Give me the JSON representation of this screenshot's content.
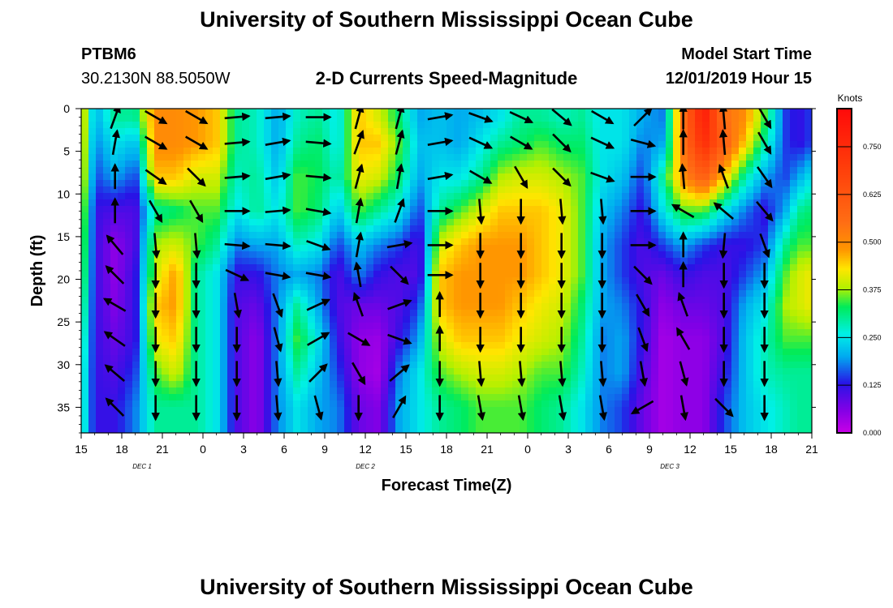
{
  "page": {
    "title_top": "University of Southern Mississippi Ocean Cube",
    "title_bottom": "University of Southern Mississippi Ocean Cube",
    "station": "PTBM6",
    "location": "30.2130N 88.5050W",
    "subtitle": "2-D Currents Speed-Magnitude",
    "model_start_label": "Model Start Time",
    "model_start_value": "12/01/2019 Hour 15"
  },
  "chart_data": {
    "type": "heatmap",
    "title": "2-D Currents Speed-Magnitude",
    "xlabel": "Forecast Time(Z)",
    "ylabel": "Depth (ft)",
    "x_tick_labels": [
      "15",
      "18",
      "21",
      "0",
      "3",
      "6",
      "9",
      "12",
      "15",
      "18",
      "21",
      "0",
      "3",
      "6",
      "9",
      "12",
      "15",
      "18",
      "21"
    ],
    "x_hours": [
      0,
      3,
      6,
      9,
      12,
      15,
      18,
      21,
      24,
      27,
      30,
      33,
      36,
      39,
      42,
      45,
      48,
      51,
      54
    ],
    "date_labels": [
      {
        "text": "DEC 1",
        "hour": 4.5
      },
      {
        "text": "DEC 2",
        "hour": 21
      },
      {
        "text": "DEC 3",
        "hour": 43.5
      }
    ],
    "xlim": [
      0,
      54
    ],
    "y_tick_labels": [
      "0",
      "5",
      "10",
      "15",
      "20",
      "25",
      "30",
      "35"
    ],
    "y_values": [
      0,
      5,
      10,
      15,
      20,
      25,
      30,
      35
    ],
    "ylim": [
      0,
      38
    ],
    "y_inverted": true,
    "colorbar": {
      "label": "Knots",
      "tick_labels": [
        "0.000",
        "0.125",
        "0.250",
        "0.375",
        "0.500",
        "0.625",
        "0.750"
      ],
      "tick_values": [
        0,
        0.125,
        0.25,
        0.375,
        0.5,
        0.625,
        0.75
      ],
      "range": [
        0,
        0.85
      ]
    },
    "arrow_depths": [
      1,
      4,
      8,
      12,
      16,
      19.5,
      23,
      27,
      31,
      35
    ],
    "speed_columns": [
      {
        "hour": 0,
        "speed": [
          0.45,
          0.45,
          0.45,
          0.42,
          0.4,
          0.38,
          0.35,
          0.32,
          0.3,
          0.3
        ]
      },
      {
        "hour": 1,
        "speed": [
          0.2,
          0.18,
          0.15,
          0.12,
          0.12,
          0.12,
          0.12,
          0.12,
          0.12,
          0.12
        ]
      },
      {
        "hour": 2.5,
        "speed": [
          0.3,
          0.25,
          0.2,
          0.1,
          0.05,
          0.05,
          0.06,
          0.08,
          0.1,
          0.12
        ]
      },
      {
        "hour": 4,
        "speed": [
          0.3,
          0.22,
          0.15,
          0.1,
          0.1,
          0.12,
          0.12,
          0.12,
          0.15,
          0.18
        ]
      },
      {
        "hour": 5.5,
        "speed": [
          0.5,
          0.5,
          0.45,
          0.3,
          0.38,
          0.4,
          0.45,
          0.42,
          0.35,
          0.3
        ]
      },
      {
        "hour": 7,
        "speed": [
          0.5,
          0.5,
          0.45,
          0.32,
          0.4,
          0.48,
          0.48,
          0.45,
          0.4,
          0.3
        ]
      },
      {
        "hour": 8.5,
        "speed": [
          0.48,
          0.48,
          0.4,
          0.35,
          0.35,
          0.3,
          0.3,
          0.3,
          0.3,
          0.3
        ]
      },
      {
        "hour": 10,
        "speed": [
          0.45,
          0.45,
          0.4,
          0.35,
          0.3,
          0.25,
          0.25,
          0.25,
          0.25,
          0.25
        ]
      },
      {
        "hour": 11.5,
        "speed": [
          0.3,
          0.3,
          0.28,
          0.25,
          0.18,
          0.12,
          0.1,
          0.1,
          0.1,
          0.1
        ]
      },
      {
        "hour": 13,
        "speed": [
          0.28,
          0.28,
          0.3,
          0.3,
          0.2,
          0.12,
          0.08,
          0.05,
          0.05,
          0.05
        ]
      },
      {
        "hour": 14.5,
        "speed": [
          0.2,
          0.2,
          0.22,
          0.25,
          0.2,
          0.18,
          0.18,
          0.18,
          0.18,
          0.18
        ]
      },
      {
        "hour": 16,
        "speed": [
          0.28,
          0.3,
          0.35,
          0.35,
          0.28,
          0.2,
          0.3,
          0.35,
          0.3,
          0.25
        ]
      },
      {
        "hour": 17.5,
        "speed": [
          0.3,
          0.32,
          0.33,
          0.32,
          0.25,
          0.18,
          0.2,
          0.25,
          0.22,
          0.2
        ]
      },
      {
        "hour": 19,
        "speed": [
          0.25,
          0.25,
          0.28,
          0.22,
          0.15,
          0.1,
          0.1,
          0.12,
          0.15,
          0.18
        ]
      },
      {
        "hour": 20.5,
        "speed": [
          0.45,
          0.45,
          0.42,
          0.35,
          0.22,
          0.18,
          0.08,
          0.05,
          0.05,
          0.08
        ]
      },
      {
        "hour": 22,
        "speed": [
          0.4,
          0.45,
          0.4,
          0.3,
          0.18,
          0.12,
          0.08,
          0.04,
          0.03,
          0.06
        ]
      },
      {
        "hour": 23.5,
        "speed": [
          0.32,
          0.35,
          0.32,
          0.25,
          0.15,
          0.1,
          0.1,
          0.12,
          0.18,
          0.2
        ]
      },
      {
        "hour": 25,
        "speed": [
          0.2,
          0.22,
          0.2,
          0.15,
          0.1,
          0.1,
          0.15,
          0.2,
          0.25,
          0.25
        ]
      },
      {
        "hour": 26.5,
        "speed": [
          0.22,
          0.22,
          0.25,
          0.3,
          0.4,
          0.45,
          0.45,
          0.4,
          0.35,
          0.3
        ]
      },
      {
        "hour": 28,
        "speed": [
          0.2,
          0.2,
          0.25,
          0.35,
          0.45,
          0.48,
          0.48,
          0.45,
          0.38,
          0.32
        ]
      },
      {
        "hour": 29.5,
        "speed": [
          0.22,
          0.25,
          0.3,
          0.4,
          0.48,
          0.48,
          0.48,
          0.45,
          0.4,
          0.35
        ]
      },
      {
        "hour": 31,
        "speed": [
          0.25,
          0.3,
          0.38,
          0.45,
          0.48,
          0.48,
          0.48,
          0.45,
          0.4,
          0.35
        ]
      },
      {
        "hour": 32.5,
        "speed": [
          0.3,
          0.32,
          0.4,
          0.45,
          0.48,
          0.48,
          0.45,
          0.42,
          0.38,
          0.35
        ]
      },
      {
        "hour": 34,
        "speed": [
          0.3,
          0.35,
          0.4,
          0.45,
          0.45,
          0.45,
          0.42,
          0.4,
          0.35,
          0.32
        ]
      },
      {
        "hour": 35.5,
        "speed": [
          0.28,
          0.32,
          0.38,
          0.42,
          0.42,
          0.42,
          0.4,
          0.38,
          0.35,
          0.3
        ]
      },
      {
        "hour": 37,
        "speed": [
          0.3,
          0.32,
          0.35,
          0.35,
          0.35,
          0.35,
          0.32,
          0.3,
          0.28,
          0.25
        ]
      },
      {
        "hour": 38.5,
        "speed": [
          0.25,
          0.25,
          0.25,
          0.22,
          0.2,
          0.2,
          0.2,
          0.18,
          0.18,
          0.18
        ]
      },
      {
        "hour": 40,
        "speed": [
          0.25,
          0.25,
          0.22,
          0.18,
          0.15,
          0.15,
          0.18,
          0.2,
          0.2,
          0.15
        ]
      },
      {
        "hour": 41.5,
        "speed": [
          0.2,
          0.18,
          0.15,
          0.12,
          0.1,
          0.1,
          0.12,
          0.12,
          0.1,
          0.08
        ]
      },
      {
        "hour": 43,
        "speed": [
          0.18,
          0.2,
          0.3,
          0.25,
          0.15,
          0.08,
          0.05,
          0.03,
          0.03,
          0.03
        ]
      },
      {
        "hour": 44.5,
        "speed": [
          0.55,
          0.55,
          0.5,
          0.35,
          0.2,
          0.12,
          0.08,
          0.05,
          0.05,
          0.05
        ]
      },
      {
        "hour": 46,
        "speed": [
          0.8,
          0.75,
          0.6,
          0.35,
          0.15,
          0.1,
          0.08,
          0.05,
          0.05,
          0.05
        ]
      },
      {
        "hour": 47.5,
        "speed": [
          0.55,
          0.6,
          0.45,
          0.25,
          0.12,
          0.1,
          0.1,
          0.1,
          0.12,
          0.15
        ]
      },
      {
        "hour": 49,
        "speed": [
          0.5,
          0.45,
          0.3,
          0.18,
          0.12,
          0.15,
          0.2,
          0.22,
          0.22,
          0.22
        ]
      },
      {
        "hour": 50.5,
        "speed": [
          0.35,
          0.3,
          0.2,
          0.12,
          0.15,
          0.2,
          0.25,
          0.28,
          0.28,
          0.25
        ]
      },
      {
        "hour": 52,
        "speed": [
          0.15,
          0.15,
          0.15,
          0.2,
          0.3,
          0.35,
          0.38,
          0.35,
          0.3,
          0.28
        ]
      },
      {
        "hour": 53,
        "speed": [
          0.12,
          0.12,
          0.2,
          0.3,
          0.35,
          0.4,
          0.4,
          0.35,
          0.3,
          0.3
        ]
      },
      {
        "hour": 54,
        "speed": [
          0.15,
          0.15,
          0.25,
          0.32,
          0.35,
          0.42,
          0.42,
          0.35,
          0.3,
          0.3
        ]
      }
    ],
    "arrow_hours": [
      2.5,
      5.5,
      8.5,
      11.5,
      14.5,
      17.5,
      20.5,
      23.5,
      26.5,
      29.5,
      32.5,
      35.5,
      38.5,
      41.5,
      44.5,
      47.5,
      50.5
    ],
    "arrow_angles_deg": [
      [
        70,
        80,
        90,
        90,
        130,
        135,
        150,
        145,
        140,
        135
      ],
      [
        -30,
        -30,
        -35,
        -60,
        -85,
        -90,
        -90,
        -90,
        -90,
        -90
      ],
      [
        -30,
        -30,
        -45,
        -60,
        -85,
        -90,
        -90,
        -90,
        -90,
        -90
      ],
      [
        5,
        5,
        5,
        0,
        -5,
        -25,
        -80,
        -90,
        -90,
        -90
      ],
      [
        5,
        10,
        10,
        5,
        -5,
        -10,
        -70,
        -75,
        -85,
        -85
      ],
      [
        0,
        -5,
        -5,
        -10,
        -20,
        -10,
        25,
        30,
        45,
        -75
      ],
      [
        75,
        70,
        75,
        80,
        80,
        100,
        110,
        -30,
        -60,
        -90
      ],
      [
        75,
        75,
        80,
        70,
        10,
        -45,
        20,
        -20,
        40,
        60
      ],
      [
        10,
        10,
        10,
        0,
        0,
        0,
        90,
        90,
        -90,
        -90
      ],
      [
        -20,
        -25,
        -30,
        -85,
        -90,
        -90,
        -90,
        -90,
        -85,
        -80
      ],
      [
        -25,
        -30,
        -60,
        -90,
        -90,
        -90,
        -90,
        -90,
        -85,
        -80
      ],
      [
        -40,
        -45,
        -45,
        -85,
        -90,
        -90,
        -90,
        -90,
        -85,
        -80
      ],
      [
        -30,
        -25,
        -20,
        -85,
        -90,
        -90,
        -90,
        -90,
        -85,
        -80
      ],
      [
        45,
        -15,
        0,
        0,
        0,
        -45,
        -60,
        -70,
        -80,
        -150
      ],
      [
        90,
        90,
        95,
        150,
        90,
        90,
        110,
        120,
        -75,
        -80
      ],
      [
        95,
        95,
        110,
        140,
        -95,
        -90,
        -90,
        -90,
        -90,
        -45
      ],
      [
        -60,
        -60,
        -55,
        -50,
        -70,
        -90,
        -90,
        -90,
        -90,
        -90
      ]
    ]
  }
}
